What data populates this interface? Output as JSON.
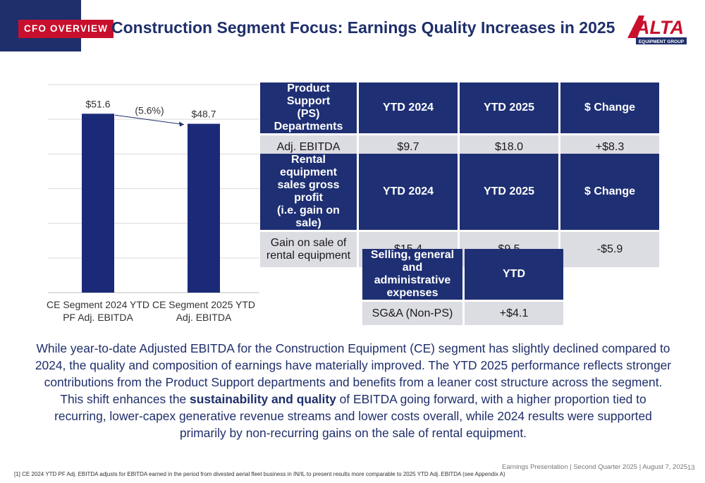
{
  "header": {
    "badge": "CFO OVERVIEW",
    "title": "Construction Segment Focus: Earnings Quality Increases in 2025",
    "logo_text": "ALTA",
    "logo_subtext": "EQUIPMENT GROUP"
  },
  "chart_data": {
    "type": "bar",
    "categories": [
      "CE Segment 2024 YTD PF Adj. EBITDA",
      "CE Segment 2025 YTD Adj. EBITDA"
    ],
    "category_lines": [
      [
        "CE Segment 2024 YTD",
        "PF Adj. EBITDA"
      ],
      [
        "CE Segment 2025 YTD",
        "Adj. EBITDA"
      ]
    ],
    "values": [
      51.6,
      48.7
    ],
    "value_labels": [
      "$51.6",
      "$48.7"
    ],
    "annotation": "(5.6%)",
    "ylim": [
      0,
      60
    ],
    "grid": true,
    "bar_color": "#1b2a78"
  },
  "tables": {
    "ps": {
      "headers": [
        "Product Support (PS) Departments",
        "YTD 2024",
        "YTD 2025",
        "$ Change"
      ],
      "header_first_lines": [
        "Product Support",
        "(PS) Departments"
      ],
      "row": [
        "Adj. EBITDA",
        "$9.7",
        "$18.0",
        "+$8.3"
      ]
    },
    "rental": {
      "headers": [
        "Rental equipment sales gross profit (i.e. gain on sale)",
        "YTD 2024",
        "YTD 2025",
        "$ Change"
      ],
      "header_first_lines": [
        "Rental equipment",
        "sales gross profit",
        "(i.e. gain on sale)"
      ],
      "row_label_lines": [
        "Gain on sale of",
        "rental equipment"
      ],
      "row": [
        "Gain on sale of rental equipment",
        "$15.4",
        "$9.5",
        "-$5.9"
      ]
    },
    "sga": {
      "headers": [
        "Selling, general and administrative expenses",
        "YTD"
      ],
      "header_first_lines": [
        "Selling, general",
        "and administrative",
        "expenses"
      ],
      "row": [
        "SG&A (Non-PS)",
        "+$4.1"
      ]
    }
  },
  "body": {
    "part1": "While year-to-date Adjusted EBITDA for the Construction Equipment (CE) segment has slightly declined compared to 2024, the quality and composition of earnings have materially improved. The YTD 2025 performance reflects stronger contributions from the Product Support departments and benefits from a leaner cost structure across the segment. This shift enhances the ",
    "bold": "sustainability and quality",
    "part2": " of EBITDA going forward, with a higher proportion tied to recurring, lower-capex generative revenue streams and lower costs overall, while 2024 results were supported primarily by non-recurring gains on the sale of rental equipment."
  },
  "footer": {
    "text": "Earnings Presentation | Second Quarter 2025 | August 7, 2025",
    "page": "13",
    "footnote": "[1] CE 2024 YTD PF Adj. EBITDA adjusts for EBITDA earned in the period from divested aerial fleet business in IN/IL to present results more comparable to 2025 YTD Adj. EBITDA (see Appendix A)"
  },
  "colors": {
    "navy": "#1f2f6b",
    "red": "#c8102e",
    "table_header": "#1e2f73",
    "table_cell": "#dcdce3"
  }
}
